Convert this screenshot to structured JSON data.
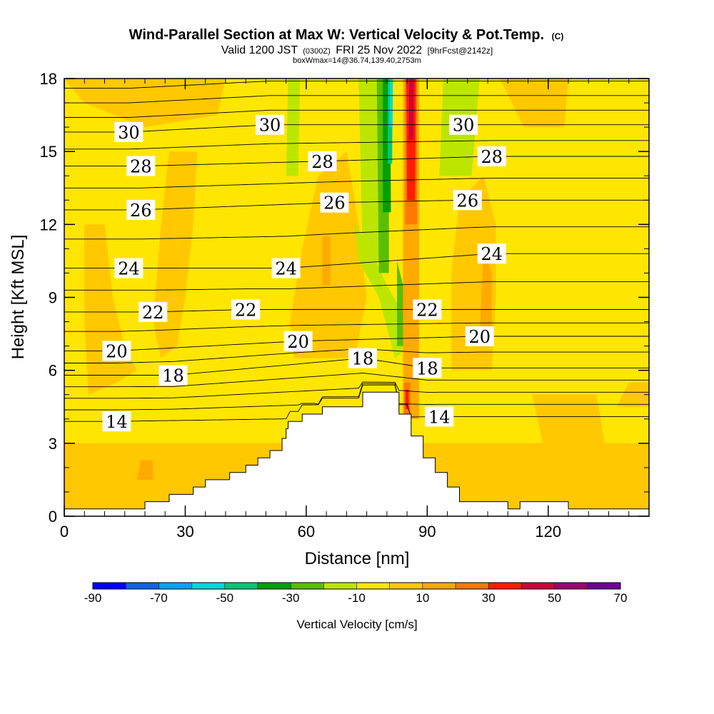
{
  "chart_data": {
    "type": "heatmap",
    "title": {
      "main": "Wind-Parallel Section at Max W: Vertical Velocity & Pot.Temp.",
      "main_suffix": "(C)",
      "valid_prefix": "Valid 1200 JST",
      "valid_utc": "(0300Z)",
      "valid_date": "FRI 25 Nov 2022",
      "forecast": "[9hrFcst@2142z]",
      "box_info": "boxWmax=14@36.74,139.40,2753m"
    },
    "xlabel": "Distance [nm]",
    "ylabel": "Height [Kft MSL]",
    "xlim": [
      0,
      145
    ],
    "ylim": [
      0,
      18
    ],
    "x_ticks": [
      0,
      30,
      60,
      90,
      120
    ],
    "y_ticks": [
      0,
      3,
      6,
      9,
      12,
      15,
      18
    ],
    "colorbar": {
      "label": "Vertical Velocity [cm/s]",
      "tick_labels": [
        "-90",
        "-70",
        "-50",
        "-30",
        "-10",
        "10",
        "30",
        "50",
        "70"
      ],
      "tick_values": [
        -90,
        -70,
        -50,
        -30,
        -10,
        10,
        30,
        50,
        70
      ],
      "bins": [
        {
          "from": -90,
          "to": -80,
          "color": "#0000ff"
        },
        {
          "from": -80,
          "to": -70,
          "color": "#0a64f0"
        },
        {
          "from": -70,
          "to": -60,
          "color": "#00a5ff"
        },
        {
          "from": -60,
          "to": -50,
          "color": "#00d9d9"
        },
        {
          "from": -50,
          "to": -40,
          "color": "#00c878"
        },
        {
          "from": -40,
          "to": -30,
          "color": "#00a000"
        },
        {
          "from": -30,
          "to": -20,
          "color": "#5abe00"
        },
        {
          "from": -20,
          "to": -10,
          "color": "#bce600"
        },
        {
          "from": -10,
          "to": 0,
          "color": "#ffe600"
        },
        {
          "from": 0,
          "to": 10,
          "color": "#ffc800"
        },
        {
          "from": 10,
          "to": 20,
          "color": "#ffaa00"
        },
        {
          "from": 20,
          "to": 30,
          "color": "#ff7800"
        },
        {
          "from": 30,
          "to": 40,
          "color": "#ff1e00"
        },
        {
          "from": 40,
          "to": 50,
          "color": "#d2003c"
        },
        {
          "from": 50,
          "to": 60,
          "color": "#a0006e"
        },
        {
          "from": 60,
          "to": 70,
          "color": "#6e0096"
        }
      ]
    },
    "terrain": [
      [
        0,
        0.3
      ],
      [
        20,
        0.3
      ],
      [
        20,
        0.6
      ],
      [
        26,
        0.6
      ],
      [
        26,
        0.9
      ],
      [
        32,
        0.9
      ],
      [
        32,
        1.2
      ],
      [
        35,
        1.2
      ],
      [
        35,
        1.5
      ],
      [
        41,
        1.5
      ],
      [
        41,
        1.8
      ],
      [
        45,
        1.8
      ],
      [
        45,
        2.1
      ],
      [
        48,
        2.1
      ],
      [
        48,
        2.4
      ],
      [
        51,
        2.4
      ],
      [
        51,
        2.7
      ],
      [
        54,
        2.7
      ],
      [
        54,
        3.2
      ],
      [
        55,
        3.2
      ],
      [
        55,
        3.6
      ],
      [
        55.5,
        3.6
      ],
      [
        55.5,
        3.9
      ],
      [
        59,
        3.9
      ],
      [
        59,
        4.2
      ],
      [
        64,
        4.2
      ],
      [
        64,
        4.5
      ],
      [
        69,
        4.5
      ],
      [
        74,
        4.5
      ],
      [
        74,
        5.1
      ],
      [
        83,
        5.1
      ],
      [
        83,
        4.2
      ],
      [
        86,
        4.2
      ],
      [
        86,
        3.3
      ],
      [
        89,
        3.3
      ],
      [
        89,
        2.4
      ],
      [
        92,
        2.4
      ],
      [
        92,
        1.8
      ],
      [
        95,
        1.8
      ],
      [
        95,
        1.2
      ],
      [
        98,
        1.2
      ],
      [
        98,
        0.6
      ],
      [
        105,
        0.6
      ],
      [
        110,
        0.6
      ],
      [
        110,
        0.3
      ],
      [
        113,
        0.3
      ],
      [
        113,
        0.6
      ],
      [
        125,
        0.6
      ],
      [
        125,
        0.3
      ],
      [
        145,
        0.3
      ]
    ],
    "shaded_regions": [
      {
        "w_bin_color": "#ffc800",
        "shape": [
          [
            5,
            12
          ],
          [
            10,
            12
          ],
          [
            12,
            9
          ],
          [
            15,
            7
          ],
          [
            18,
            6
          ],
          [
            13,
            5.5
          ],
          [
            6,
            5
          ],
          [
            5,
            8
          ]
        ]
      },
      {
        "w_bin_color": "#ffc800",
        "shape": [
          [
            26,
            15
          ],
          [
            33,
            15
          ],
          [
            32,
            12
          ],
          [
            30,
            9
          ],
          [
            28,
            7
          ],
          [
            24,
            6.5
          ],
          [
            22,
            8
          ],
          [
            24,
            12
          ]
        ]
      },
      {
        "w_bin_color": "#ffc800",
        "shape": [
          [
            0,
            3
          ],
          [
            145,
            3
          ],
          [
            145,
            0.3
          ],
          [
            0,
            0.3
          ]
        ]
      },
      {
        "w_bin_color": "#ffc800",
        "shape": [
          [
            57,
            6.5
          ],
          [
            72,
            6.5
          ],
          [
            75,
            9
          ],
          [
            73,
            12
          ],
          [
            70,
            15
          ],
          [
            63,
            14
          ],
          [
            59,
            11
          ],
          [
            56,
            8
          ]
        ]
      },
      {
        "w_bin_color": "#ffc800",
        "shape": [
          [
            96,
            6
          ],
          [
            106,
            6
          ],
          [
            107,
            9
          ],
          [
            107,
            12
          ],
          [
            104,
            14
          ],
          [
            98,
            13
          ],
          [
            96,
            10
          ]
        ]
      },
      {
        "w_bin_color": "#ffc800",
        "shape": [
          [
            116,
            5
          ],
          [
            132,
            5
          ],
          [
            135,
            2
          ],
          [
            128,
            1
          ],
          [
            120,
            2
          ]
        ]
      },
      {
        "w_bin_color": "#ffc800",
        "shape": [
          [
            137,
            4.5
          ],
          [
            145,
            4.5
          ],
          [
            145,
            5.5
          ],
          [
            140,
            5.5
          ]
        ]
      },
      {
        "w_bin_color": "#ffc800",
        "shape": [
          [
            108,
            18
          ],
          [
            125,
            18
          ],
          [
            124,
            16
          ],
          [
            114,
            16
          ]
        ]
      },
      {
        "w_bin_color": "#ffc800",
        "shape": [
          [
            0,
            18
          ],
          [
            40,
            18
          ],
          [
            38,
            16.5
          ],
          [
            20,
            16
          ],
          [
            5,
            17
          ]
        ]
      },
      {
        "w_bin_color": "#ffaa00",
        "shape": [
          [
            64,
            9.5
          ],
          [
            66,
            9.5
          ],
          [
            66,
            11.5
          ],
          [
            64,
            11.5
          ]
        ]
      },
      {
        "w_bin_color": "#ffaa00",
        "shape": [
          [
            103,
            7.5
          ],
          [
            106,
            7.5
          ],
          [
            106,
            10
          ],
          [
            104,
            11
          ]
        ]
      },
      {
        "w_bin_color": "#ffaa00",
        "shape": [
          [
            18,
            1.5
          ],
          [
            22,
            1.5
          ],
          [
            22,
            2.3
          ],
          [
            19,
            2.3
          ]
        ]
      },
      {
        "w_bin_color": "#bce600",
        "shape": [
          [
            55,
            14
          ],
          [
            58,
            14
          ],
          [
            58.5,
            18
          ],
          [
            55.5,
            18
          ]
        ]
      },
      {
        "w_bin_color": "#bce600",
        "shape": [
          [
            93,
            14
          ],
          [
            101,
            14
          ],
          [
            103,
            18
          ],
          [
            94,
            18
          ]
        ]
      },
      {
        "w_bin_color": "#bce600",
        "shape": [
          [
            72,
            12
          ],
          [
            76,
            11
          ],
          [
            80,
            9.5
          ],
          [
            85,
            8
          ],
          [
            85.5,
            7
          ],
          [
            82,
            6.5
          ],
          [
            78,
            9
          ],
          [
            73,
            10.5
          ]
        ]
      },
      {
        "w_bin_color": "#bce600",
        "shape": [
          [
            74,
            10.5
          ],
          [
            79,
            10.5
          ],
          [
            78,
            18
          ],
          [
            73,
            18
          ]
        ]
      },
      {
        "w_bin_color": "#5abe00",
        "shape": [
          [
            78,
            10
          ],
          [
            80.5,
            10
          ],
          [
            80.5,
            18
          ],
          [
            77.5,
            18
          ]
        ]
      },
      {
        "w_bin_color": "#00a000",
        "shape": [
          [
            79,
            12.5
          ],
          [
            81,
            12.5
          ],
          [
            80.8,
            18
          ],
          [
            79,
            18
          ]
        ]
      },
      {
        "w_bin_color": "#00c878",
        "shape": [
          [
            80.2,
            14.5
          ],
          [
            81.3,
            14.5
          ],
          [
            81.4,
            18
          ],
          [
            80.2,
            18
          ]
        ]
      },
      {
        "w_bin_color": "#00d9d9",
        "shape": [
          [
            80.6,
            16
          ],
          [
            81.4,
            16
          ],
          [
            81.5,
            18
          ],
          [
            80.7,
            18
          ]
        ]
      },
      {
        "w_bin_color": "#5abe00",
        "shape": [
          [
            82.5,
            7
          ],
          [
            84,
            7
          ],
          [
            84,
            9.5
          ],
          [
            82.5,
            10.5
          ]
        ]
      },
      {
        "w_bin_color": "#ffaa00",
        "shape": [
          [
            84,
            4
          ],
          [
            88,
            4
          ],
          [
            88,
            18
          ],
          [
            84,
            18
          ]
        ]
      },
      {
        "w_bin_color": "#ff7800",
        "shape": [
          [
            84.5,
            12
          ],
          [
            87.5,
            12
          ],
          [
            87.5,
            18
          ],
          [
            84.5,
            18
          ]
        ]
      },
      {
        "w_bin_color": "#ff1e00",
        "shape": [
          [
            85,
            13
          ],
          [
            87,
            13
          ],
          [
            87.2,
            18
          ],
          [
            84.8,
            18
          ]
        ]
      },
      {
        "w_bin_color": "#d2003c",
        "shape": [
          [
            85.5,
            15.5
          ],
          [
            86.6,
            15.5
          ],
          [
            86.7,
            18
          ],
          [
            85.5,
            18
          ]
        ]
      },
      {
        "w_bin_color": "#ff7800",
        "shape": [
          [
            84.2,
            4.2
          ],
          [
            85.8,
            4.2
          ],
          [
            85.8,
            5.5
          ],
          [
            84.2,
            5.5
          ]
        ]
      },
      {
        "w_bin_color": "#ff1e00",
        "shape": [
          [
            84.6,
            4.4
          ],
          [
            85.4,
            4.4
          ],
          [
            85.4,
            5.2
          ],
          [
            84.6,
            5.2
          ]
        ]
      }
    ],
    "contour_labels": [
      {
        "value": "30",
        "x": 16,
        "y": 15.8
      },
      {
        "value": "30",
        "x": 51,
        "y": 16.1
      },
      {
        "value": "30",
        "x": 99,
        "y": 16.1
      },
      {
        "value": "28",
        "x": 19,
        "y": 14.4
      },
      {
        "value": "28",
        "x": 64,
        "y": 14.6
      },
      {
        "value": "28",
        "x": 106,
        "y": 14.8
      },
      {
        "value": "26",
        "x": 19,
        "y": 12.6
      },
      {
        "value": "26",
        "x": 67,
        "y": 12.9
      },
      {
        "value": "26",
        "x": 100,
        "y": 13.0
      },
      {
        "value": "24",
        "x": 16,
        "y": 10.2
      },
      {
        "value": "24",
        "x": 55,
        "y": 10.2
      },
      {
        "value": "24",
        "x": 106,
        "y": 10.8
      },
      {
        "value": "22",
        "x": 22,
        "y": 8.4
      },
      {
        "value": "22",
        "x": 45,
        "y": 8.5
      },
      {
        "value": "22",
        "x": 90,
        "y": 8.5
      },
      {
        "value": "20",
        "x": 13,
        "y": 6.8
      },
      {
        "value": "20",
        "x": 58,
        "y": 7.2
      },
      {
        "value": "20",
        "x": 103,
        "y": 7.4
      },
      {
        "value": "18",
        "x": 27,
        "y": 5.8
      },
      {
        "value": "18",
        "x": 74,
        "y": 6.5
      },
      {
        "value": "18",
        "x": 90,
        "y": 6.1
      },
      {
        "value": "14",
        "x": 13,
        "y": 3.9
      },
      {
        "value": "14",
        "x": 93,
        "y": 4.1
      }
    ]
  }
}
